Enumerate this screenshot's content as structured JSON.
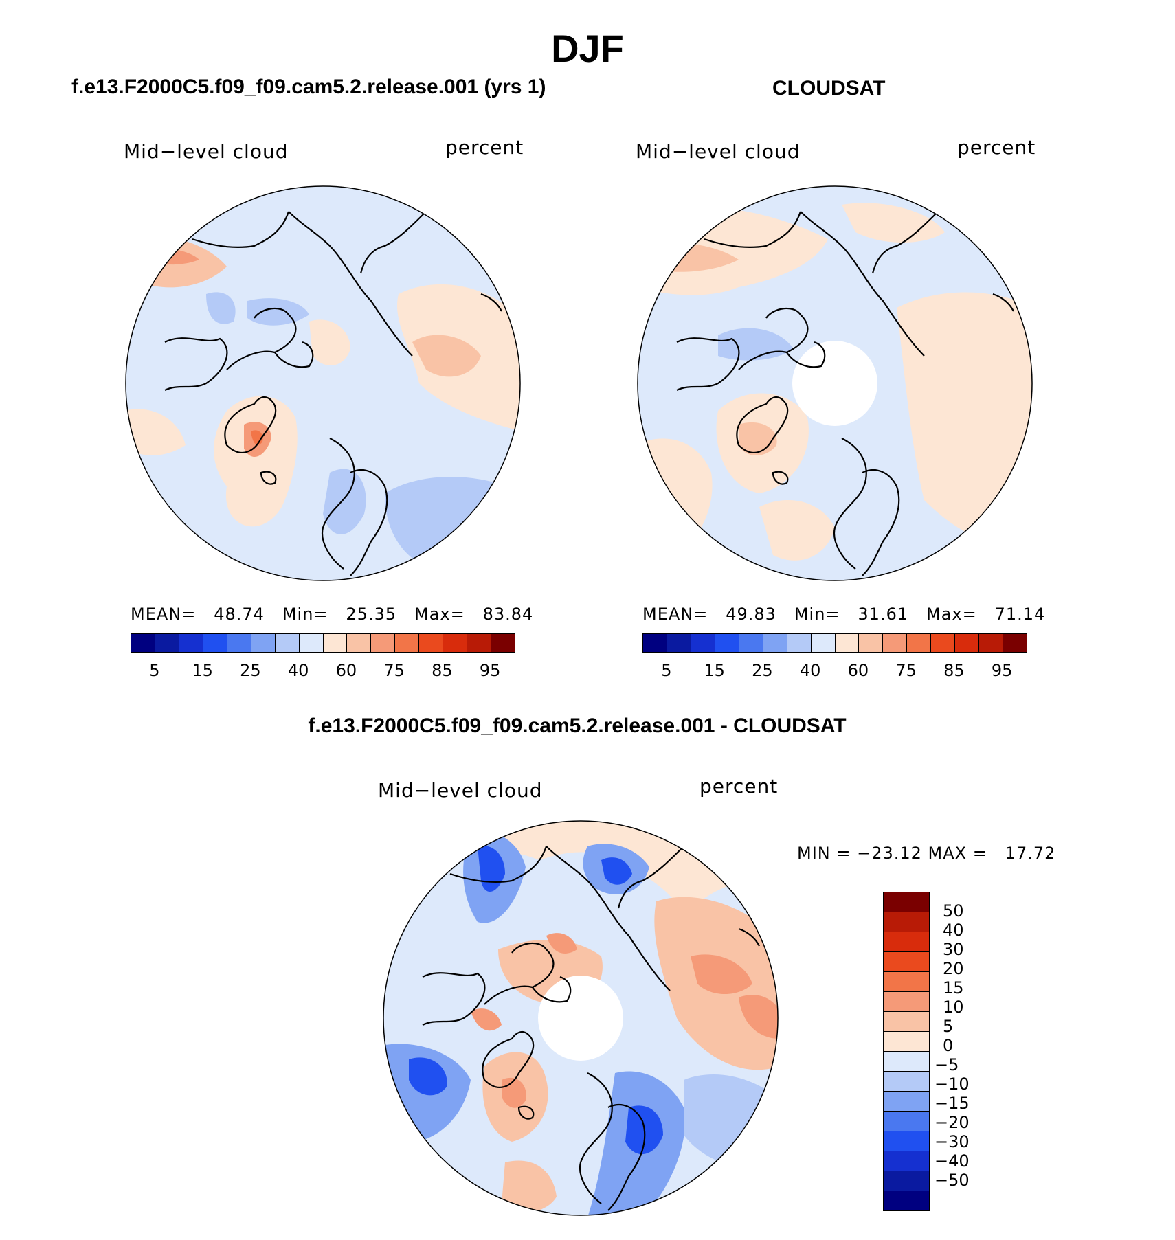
{
  "title": "DJF",
  "colors": {
    "abs_scale": [
      "#000080",
      "#0a1aa0",
      "#1530d0",
      "#2050f0",
      "#4a78f0",
      "#7fa3f3",
      "#b4caf7",
      "#dde9fb",
      "#fde6d4",
      "#f9c3a6",
      "#f59a78",
      "#f27548",
      "#ea4a1e",
      "#d82c0c",
      "#b81b06",
      "#7a0000"
    ],
    "diff_scale": [
      "#7a0000",
      "#b81b06",
      "#d82c0c",
      "#ea4a1e",
      "#f27548",
      "#f59a78",
      "#f9c3a6",
      "#fde6d4",
      "#dde9fb",
      "#b4caf7",
      "#7fa3f3",
      "#4a78f0",
      "#2050f0",
      "#1530d0",
      "#0a1aa0",
      "#000080"
    ],
    "land_outline": "#000000",
    "missing": "#ffffff"
  },
  "panels": [
    {
      "title": "f.e13.F2000C5.f09_f09.cam5.2.release.001 (yrs 1)",
      "variable": "Mid−level cloud",
      "units": "percent",
      "stats": "MEAN=   48.74   Min=   25.35   Max=   83.84",
      "colorbar_ticks": [
        "5",
        "15",
        "25",
        "40",
        "60",
        "75",
        "85",
        "95"
      ]
    },
    {
      "title": "CLOUDSAT",
      "variable": "Mid−level cloud",
      "units": "percent",
      "stats": "MEAN=   49.83   Min=   31.61   Max=   71.14",
      "colorbar_ticks": [
        "5",
        "15",
        "25",
        "40",
        "60",
        "75",
        "85",
        "95"
      ]
    },
    {
      "title": "f.e13.F2000C5.f09_f09.cam5.2.release.001 - CLOUDSAT",
      "variable": "Mid−level cloud",
      "units": "percent",
      "stats": "MIN = −23.12 MAX =   17.72",
      "colorbar_ticks": [
        "50",
        "40",
        "30",
        "20",
        "15",
        "10",
        "5",
        "0",
        "−5",
        "−10",
        "−15",
        "−20",
        "−30",
        "−40",
        "−50"
      ]
    }
  ]
}
